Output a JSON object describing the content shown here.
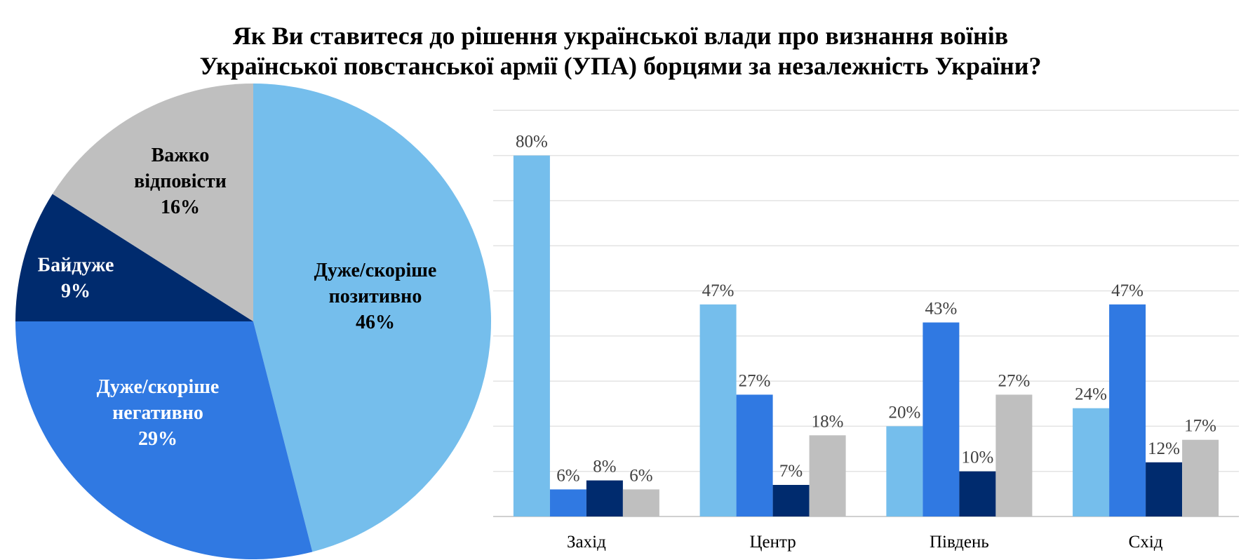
{
  "title": {
    "line1": "Як Ви ставитеся до рішення української влади про визнання воїнів",
    "line2": "Української повстанської армії (УПА) борцями за незалежність України?"
  },
  "colors": {
    "positive": "#75BEEC",
    "negative": "#3079E2",
    "indifferent": "#002B6E",
    "hard_to_say": "#BFBFBF"
  },
  "chart_data": [
    {
      "type": "pie",
      "slices": [
        {
          "label_lines": [
            "Дуже/скоріше",
            "позитивно"
          ],
          "value": 46,
          "value_label": "46%",
          "color": "#75BEEC",
          "text_color": "#000000"
        },
        {
          "label_lines": [
            "Дуже/скоріше",
            "негативно"
          ],
          "value": 29,
          "value_label": "29%",
          "color": "#3079E2",
          "text_color": "#FFFFFF"
        },
        {
          "label_lines": [
            "Байдуже"
          ],
          "value": 9,
          "value_label": "9%",
          "color": "#002B6E",
          "text_color": "#FFFFFF"
        },
        {
          "label_lines": [
            "Важко",
            "відповісти"
          ],
          "value": 16,
          "value_label": "16%",
          "color": "#BFBFBF",
          "text_color": "#000000"
        }
      ]
    },
    {
      "type": "bar",
      "categories": [
        "Захід",
        "Центр",
        "Південь",
        "Схід"
      ],
      "series": [
        {
          "values": [
            80,
            47,
            20,
            24
          ],
          "labels": [
            "80%",
            "47%",
            "20%",
            "24%"
          ],
          "color": "#75BEEC"
        },
        {
          "values": [
            6,
            27,
            43,
            47
          ],
          "labels": [
            "6%",
            "27%",
            "43%",
            "47%"
          ],
          "color": "#3079E2"
        },
        {
          "values": [
            8,
            7,
            10,
            12
          ],
          "labels": [
            "8%",
            "7%",
            "10%",
            "12%"
          ],
          "color": "#002B6E"
        },
        {
          "values": [
            6,
            18,
            27,
            17
          ],
          "labels": [
            "6%",
            "18%",
            "27%",
            "17%"
          ],
          "color": "#BFBFBF"
        }
      ],
      "ylim": [
        0,
        90
      ],
      "grid": true
    }
  ]
}
